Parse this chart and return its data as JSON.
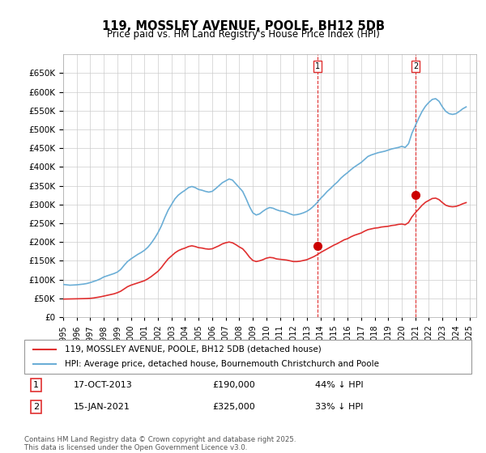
{
  "title": "119, MOSSLEY AVENUE, POOLE, BH12 5DB",
  "subtitle": "Price paid vs. HM Land Registry's House Price Index (HPI)",
  "ylabel_left": "",
  "ylim": [
    0,
    700000
  ],
  "yticks": [
    0,
    50000,
    100000,
    150000,
    200000,
    250000,
    300000,
    350000,
    400000,
    450000,
    500000,
    550000,
    600000,
    650000
  ],
  "xlim_start": 1995.0,
  "xlim_end": 2025.5,
  "hpi_color": "#6baed6",
  "price_color": "#e03030",
  "marker_color_red": "#cc0000",
  "dashed_line_color": "#e03030",
  "background_color": "#ffffff",
  "grid_color": "#cccccc",
  "transaction1": {
    "date": "17-OCT-2013",
    "price": 190000,
    "pct": "44%",
    "label": "1"
  },
  "transaction2": {
    "date": "15-JAN-2021",
    "price": 325000,
    "pct": "33%",
    "label": "2"
  },
  "legend_line1": "119, MOSSLEY AVENUE, POOLE, BH12 5DB (detached house)",
  "legend_line2": "HPI: Average price, detached house, Bournemouth Christchurch and Poole",
  "footer": "Contains HM Land Registry data © Crown copyright and database right 2025.\nThis data is licensed under the Open Government Licence v3.0.",
  "hpi_data": {
    "years": [
      1995.0,
      1995.25,
      1995.5,
      1995.75,
      1996.0,
      1996.25,
      1996.5,
      1996.75,
      1997.0,
      1997.25,
      1997.5,
      1997.75,
      1998.0,
      1998.25,
      1998.5,
      1998.75,
      1999.0,
      1999.25,
      1999.5,
      1999.75,
      2000.0,
      2000.25,
      2000.5,
      2000.75,
      2001.0,
      2001.25,
      2001.5,
      2001.75,
      2002.0,
      2002.25,
      2002.5,
      2002.75,
      2003.0,
      2003.25,
      2003.5,
      2003.75,
      2004.0,
      2004.25,
      2004.5,
      2004.75,
      2005.0,
      2005.25,
      2005.5,
      2005.75,
      2006.0,
      2006.25,
      2006.5,
      2006.75,
      2007.0,
      2007.25,
      2007.5,
      2007.75,
      2008.0,
      2008.25,
      2008.5,
      2008.75,
      2009.0,
      2009.25,
      2009.5,
      2009.75,
      2010.0,
      2010.25,
      2010.5,
      2010.75,
      2011.0,
      2011.25,
      2011.5,
      2011.75,
      2012.0,
      2012.25,
      2012.5,
      2012.75,
      2013.0,
      2013.25,
      2013.5,
      2013.75,
      2014.0,
      2014.25,
      2014.5,
      2014.75,
      2015.0,
      2015.25,
      2015.5,
      2015.75,
      2016.0,
      2016.25,
      2016.5,
      2016.75,
      2017.0,
      2017.25,
      2017.5,
      2017.75,
      2018.0,
      2018.25,
      2018.5,
      2018.75,
      2019.0,
      2019.25,
      2019.5,
      2019.75,
      2020.0,
      2020.25,
      2020.5,
      2020.75,
      2021.0,
      2021.25,
      2021.5,
      2021.75,
      2022.0,
      2022.25,
      2022.5,
      2022.75,
      2023.0,
      2023.25,
      2023.5,
      2023.75,
      2024.0,
      2024.25,
      2024.5,
      2024.75
    ],
    "values": [
      87000,
      86000,
      85000,
      85500,
      86000,
      87000,
      88000,
      89500,
      92000,
      95000,
      98000,
      102000,
      107000,
      110000,
      113000,
      116000,
      120000,
      127000,
      138000,
      148000,
      155000,
      161000,
      167000,
      172000,
      178000,
      186000,
      197000,
      210000,
      225000,
      243000,
      265000,
      285000,
      300000,
      315000,
      325000,
      332000,
      338000,
      345000,
      348000,
      345000,
      340000,
      338000,
      335000,
      333000,
      335000,
      342000,
      350000,
      358000,
      363000,
      368000,
      365000,
      355000,
      345000,
      335000,
      316000,
      295000,
      278000,
      272000,
      275000,
      282000,
      288000,
      292000,
      290000,
      286000,
      283000,
      282000,
      279000,
      275000,
      272000,
      273000,
      275000,
      278000,
      282000,
      288000,
      296000,
      305000,
      316000,
      325000,
      335000,
      343000,
      352000,
      360000,
      370000,
      378000,
      385000,
      393000,
      400000,
      406000,
      412000,
      420000,
      428000,
      432000,
      435000,
      438000,
      440000,
      442000,
      445000,
      448000,
      450000,
      452000,
      455000,
      452000,
      462000,
      490000,
      510000,
      530000,
      548000,
      562000,
      572000,
      580000,
      582000,
      575000,
      560000,
      548000,
      542000,
      540000,
      542000,
      548000,
      555000,
      560000
    ]
  },
  "price_data": {
    "years": [
      1995.0,
      1995.25,
      1995.5,
      1995.75,
      1996.0,
      1996.25,
      1996.5,
      1996.75,
      1997.0,
      1997.25,
      1997.5,
      1997.75,
      1998.0,
      1998.25,
      1998.5,
      1998.75,
      1999.0,
      1999.25,
      1999.5,
      1999.75,
      2000.0,
      2000.25,
      2000.5,
      2000.75,
      2001.0,
      2001.25,
      2001.5,
      2001.75,
      2002.0,
      2002.25,
      2002.5,
      2002.75,
      2003.0,
      2003.25,
      2003.5,
      2003.75,
      2004.0,
      2004.25,
      2004.5,
      2004.75,
      2005.0,
      2005.25,
      2005.5,
      2005.75,
      2006.0,
      2006.25,
      2006.5,
      2006.75,
      2007.0,
      2007.25,
      2007.5,
      2007.75,
      2008.0,
      2008.25,
      2008.5,
      2008.75,
      2009.0,
      2009.25,
      2009.5,
      2009.75,
      2010.0,
      2010.25,
      2010.5,
      2010.75,
      2011.0,
      2011.25,
      2011.5,
      2011.75,
      2012.0,
      2012.25,
      2012.5,
      2012.75,
      2013.0,
      2013.25,
      2013.5,
      2013.75,
      2014.0,
      2014.25,
      2014.5,
      2014.75,
      2015.0,
      2015.25,
      2015.5,
      2015.75,
      2016.0,
      2016.25,
      2016.5,
      2016.75,
      2017.0,
      2017.25,
      2017.5,
      2017.75,
      2018.0,
      2018.25,
      2018.5,
      2018.75,
      2019.0,
      2019.25,
      2019.5,
      2019.75,
      2020.0,
      2020.25,
      2020.5,
      2020.75,
      2021.0,
      2021.25,
      2021.5,
      2021.75,
      2022.0,
      2022.25,
      2022.5,
      2022.75,
      2023.0,
      2023.25,
      2023.5,
      2023.75,
      2024.0,
      2024.25,
      2024.5,
      2024.75
    ],
    "values": [
      48000,
      48200,
      48400,
      48600,
      48800,
      49000,
      49200,
      49500,
      50000,
      51000,
      52500,
      54000,
      56000,
      58000,
      60000,
      62000,
      65000,
      69000,
      75000,
      81000,
      85000,
      88000,
      91000,
      94000,
      97000,
      102000,
      108000,
      115000,
      122000,
      132000,
      144000,
      155000,
      163000,
      171000,
      177000,
      181000,
      184000,
      188000,
      190000,
      188000,
      185000,
      184000,
      182000,
      181000,
      182000,
      186000,
      190000,
      195000,
      198000,
      200000,
      198000,
      193000,
      187000,
      182000,
      172000,
      160000,
      151000,
      148000,
      150000,
      153000,
      157000,
      159000,
      158000,
      155000,
      154000,
      153000,
      152000,
      150000,
      148000,
      148000,
      149000,
      151000,
      153000,
      157000,
      161000,
      166000,
      172000,
      177000,
      182000,
      187000,
      192000,
      196000,
      201000,
      206000,
      209000,
      214000,
      218000,
      221000,
      224000,
      229000,
      233000,
      235000,
      237000,
      238000,
      240000,
      241000,
      242000,
      244000,
      245000,
      247000,
      248000,
      246000,
      252000,
      267000,
      278000,
      288000,
      298000,
      306000,
      311000,
      316000,
      317000,
      313000,
      305000,
      298000,
      295000,
      294000,
      295000,
      298000,
      302000,
      305000
    ]
  },
  "t1_x": 2013.79,
  "t1_y": 190000,
  "t2_x": 2021.04,
  "t2_y": 325000
}
